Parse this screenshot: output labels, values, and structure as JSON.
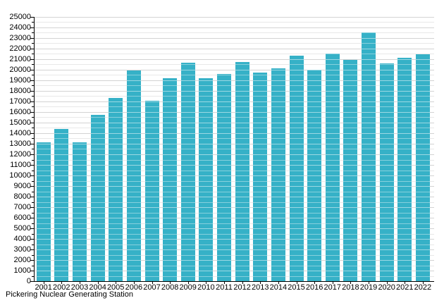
{
  "chart_data": {
    "type": "bar",
    "title": "Pickering Nuclear Generating Station",
    "categories": [
      "2001",
      "2002",
      "2003",
      "2004",
      "2005",
      "2006",
      "2007",
      "2008",
      "2009",
      "2010",
      "2011",
      "2012",
      "2013",
      "2014",
      "2015",
      "2016",
      "2017",
      "2018",
      "2019",
      "2020",
      "2021",
      "2022"
    ],
    "values": [
      13100,
      14400,
      13100,
      15700,
      17350,
      19900,
      17050,
      19200,
      20650,
      19200,
      19600,
      20750,
      19700,
      20150,
      21300,
      20000,
      21500,
      20900,
      23550,
      20600,
      21150,
      21450
    ],
    "xlabel": "",
    "ylabel": "",
    "ylim": [
      0,
      25000
    ],
    "y_major_step": 1000,
    "y_minor_step": 500,
    "grid": "on",
    "legend": "none",
    "bar_color": "#36b1c7",
    "major_grid_color": "#a6a6a6",
    "minor_grid_color": "#d9d9d9",
    "axis_color": "#000000"
  }
}
